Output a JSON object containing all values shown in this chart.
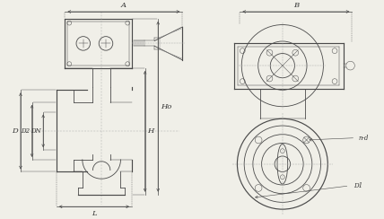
{
  "bg_color": "#f0efe8",
  "line_color": "#4a4a4a",
  "dim_color": "#4a4a4a",
  "text_color": "#333333",
  "figsize": [
    4.28,
    2.44
  ],
  "dpi": 100,
  "labels": {
    "A": "A",
    "B": "B",
    "Ho": "Ho",
    "H": "H",
    "L": "L",
    "D": "D",
    "D2": "D2",
    "DN": "DN",
    "D1": "D1",
    "nd": "n-d"
  }
}
